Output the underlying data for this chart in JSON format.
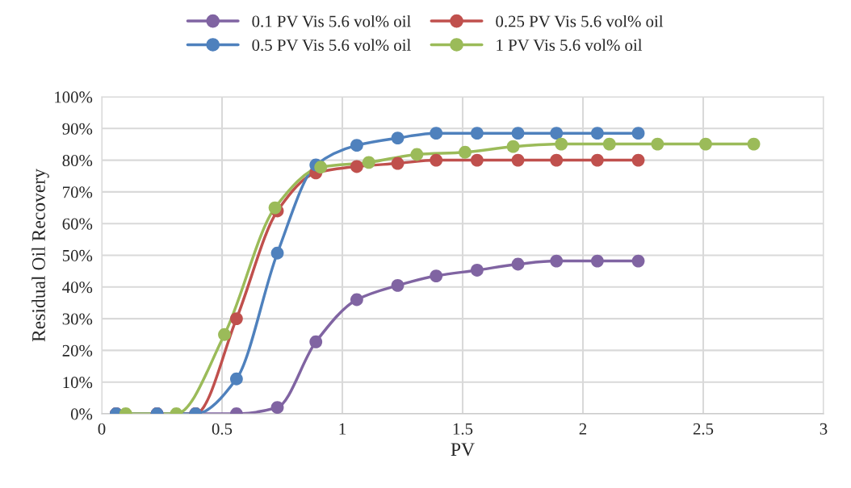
{
  "chart_data": {
    "type": "line",
    "xlabel": "PV",
    "ylabel": "Residual Oil Recovery",
    "xlim": [
      0,
      3
    ],
    "xticks": [
      0,
      0.5,
      1,
      1.5,
      2,
      2.5,
      3
    ],
    "ylim": [
      0,
      100
    ],
    "yticks": [
      {
        "value": 0,
        "label": "0%"
      },
      {
        "value": 10,
        "label": "10%"
      },
      {
        "value": 20,
        "label": "20%"
      },
      {
        "value": 30,
        "label": "30%"
      },
      {
        "value": 40,
        "label": "40%"
      },
      {
        "value": 50,
        "label": "50%"
      },
      {
        "value": 60,
        "label": "60%"
      },
      {
        "value": 70,
        "label": "70%"
      },
      {
        "value": 80,
        "label": "80%"
      },
      {
        "value": 90,
        "label": "90%"
      },
      {
        "value": 100,
        "label": "100%"
      }
    ],
    "grid": true,
    "legend": "top",
    "marker": "circle",
    "line_style": "solid",
    "series": [
      {
        "name": "0.1 PV Vis 5.6 vol% oil",
        "color": "#8064a2",
        "x": [
          0.06,
          0.23,
          0.39,
          0.56,
          0.73,
          0.89,
          1.06,
          1.23,
          1.39,
          1.56,
          1.73,
          1.89,
          2.06,
          2.23
        ],
        "values": [
          0,
          0,
          0,
          0,
          2,
          22.7,
          36,
          40.5,
          43.5,
          45.3,
          47.2,
          48.2,
          48.2,
          48.2
        ]
      },
      {
        "name": "0.25 PV Vis 5.6 vol% oil",
        "color": "#c0504d",
        "x": [
          0.06,
          0.23,
          0.39,
          0.56,
          0.73,
          0.89,
          1.06,
          1.23,
          1.39,
          1.56,
          1.73,
          1.89,
          2.06,
          2.23
        ],
        "values": [
          0,
          0,
          0,
          30,
          64,
          76,
          78,
          79,
          80,
          80,
          80,
          80,
          80,
          80
        ]
      },
      {
        "name": "0.5 PV Vis 5.6 vol% oil",
        "color": "#4f81bd",
        "x": [
          0.06,
          0.23,
          0.39,
          0.56,
          0.73,
          0.89,
          1.06,
          1.23,
          1.39,
          1.56,
          1.73,
          1.89,
          2.06,
          2.23
        ],
        "values": [
          0,
          0,
          0,
          11,
          50.7,
          78.5,
          84.7,
          87,
          88.5,
          88.5,
          88.5,
          88.5,
          88.5,
          88.5
        ]
      },
      {
        "name": "1 PV Vis 5.6 vol% oil",
        "color": "#9bbb59",
        "x": [
          0.1,
          0.31,
          0.51,
          0.72,
          0.91,
          1.11,
          1.31,
          1.51,
          1.71,
          1.91,
          2.11,
          2.31,
          2.51,
          2.71
        ],
        "values": [
          0,
          0,
          25,
          65,
          77.8,
          79.3,
          81.8,
          82.5,
          84.3,
          85.1,
          85.1,
          85.1,
          85.1,
          85.1
        ]
      }
    ]
  }
}
